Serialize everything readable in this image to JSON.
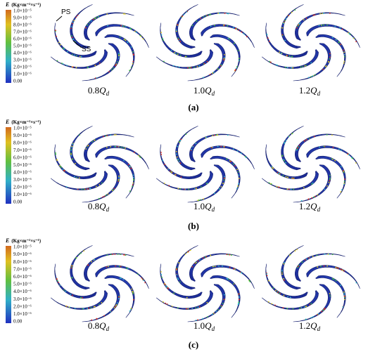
{
  "figure": {
    "panels": [
      {
        "label": "(a)",
        "colorbar": {
          "symbol": "E",
          "unit": "(Kg×m⁻²×s⁻¹)",
          "ticks": [
            "1.0×10⁻⁵",
            "9.0×10⁻⁶",
            "8.0×10⁻⁶",
            "7.0×10⁻⁶",
            "6.0×10⁻⁶",
            "5.0×10⁻⁶",
            "4.0×10⁻⁶",
            "3.0×10⁻⁶",
            "2.0×10⁻⁶",
            "1.0×10⁻⁶",
            "0.00"
          ]
        },
        "images": [
          {
            "coef": "0.8",
            "symbol": "Q",
            "subscript": "d"
          },
          {
            "coef": "1.0",
            "symbol": "Q",
            "subscript": "d"
          },
          {
            "coef": "1.2",
            "symbol": "Q",
            "subscript": "d"
          }
        ],
        "annotations": [
          "PS",
          "SS"
        ]
      },
      {
        "label": "(b)",
        "colorbar": {
          "symbol": "E",
          "unit": "(Kg×m⁻²×s⁻¹)",
          "ticks": [
            "1.0×10⁻⁵",
            "9.0×10⁻⁶",
            "8.0×10⁻⁶",
            "7.0×10⁻⁶",
            "6.0×10⁻⁶",
            "5.0×10⁻⁶",
            "4.0×10⁻⁶",
            "3.0×10⁻⁶",
            "2.0×10⁻⁶",
            "1.0×10⁻⁶",
            "0.00"
          ]
        },
        "images": [
          {
            "coef": "0.8",
            "symbol": "Q",
            "subscript": "d"
          },
          {
            "coef": "1.0",
            "symbol": "Q",
            "subscript": "d"
          },
          {
            "coef": "1.2",
            "symbol": "Q",
            "subscript": "d"
          }
        ]
      },
      {
        "label": "(c)",
        "colorbar": {
          "symbol": "E",
          "unit": "(Kg×m⁻²×s⁻¹)",
          "ticks": [
            "1.0×10⁻⁵",
            "9.0×10⁻⁶",
            "8.0×10⁻⁶",
            "7.0×10⁻⁶",
            "6.0×10⁻⁶",
            "5.0×10⁻⁶",
            "4.0×10⁻⁶",
            "3.0×10⁻⁶",
            "2.0×10⁻⁶",
            "1.0×10⁻⁶",
            "0.00"
          ]
        },
        "images": [
          {
            "coef": "0.8",
            "symbol": "Q",
            "subscript": "d"
          },
          {
            "coef": "1.0",
            "symbol": "Q",
            "subscript": "d"
          },
          {
            "coef": "1.2",
            "symbol": "Q",
            "subscript": "d"
          }
        ]
      }
    ]
  }
}
